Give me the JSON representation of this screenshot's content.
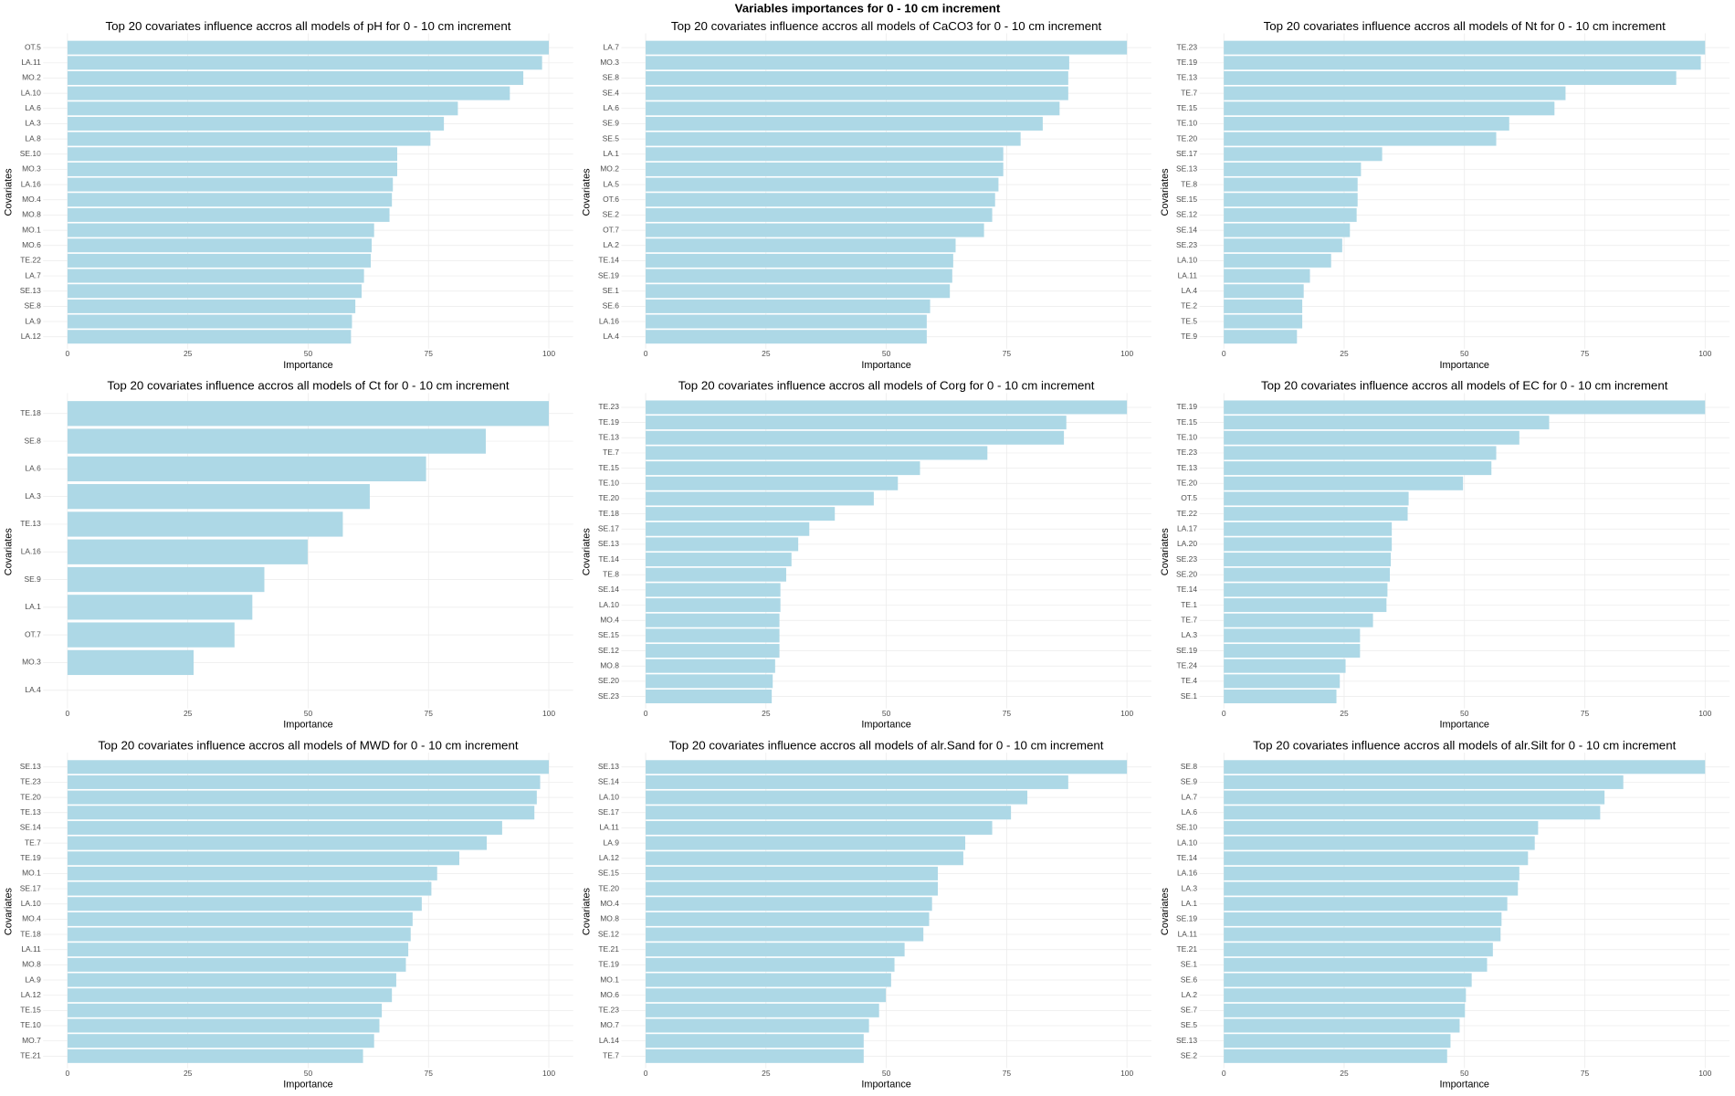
{
  "title": "Variables importances for 0 - 10 cm increment",
  "chart_data": [
    {
      "type": "bar",
      "orientation": "horizontal",
      "title": "Top 20 covariates influence accros all models of pH for 0 - 10 cm increment",
      "xlabel": "Importance",
      "ylabel": "Covariates",
      "color": "#add8e6",
      "xlim": [
        0,
        100
      ],
      "xticks": [
        0,
        25,
        50,
        75,
        100
      ],
      "grid": true,
      "categories": [
        "OT.5",
        "LA.11",
        "MO.2",
        "LA.10",
        "LA.6",
        "LA.3",
        "LA.8",
        "SE.10",
        "MO.3",
        "LA.16",
        "MO.4",
        "MO.8",
        "MO.1",
        "MO.6",
        "TE.22",
        "LA.7",
        "SE.13",
        "SE.8",
        "LA.9",
        "LA.12"
      ],
      "values": [
        100,
        98.6,
        94.7,
        91.9,
        81.1,
        78.2,
        75.4,
        68.5,
        68.5,
        67.6,
        67.4,
        66.9,
        63.7,
        63.2,
        63.0,
        61.6,
        61.1,
        59.8,
        59.1,
        58.9
      ]
    },
    {
      "type": "bar",
      "orientation": "horizontal",
      "title": "Top 20 covariates influence accros all models of CaCO3 for 0 - 10 cm increment",
      "xlabel": "Importance",
      "ylabel": "Covariates",
      "color": "#add8e6",
      "xlim": [
        0,
        100
      ],
      "xticks": [
        0,
        25,
        50,
        75,
        100
      ],
      "grid": true,
      "categories": [
        "LA.7",
        "MO.3",
        "SE.8",
        "SE.4",
        "LA.6",
        "SE.9",
        "SE.5",
        "LA.1",
        "MO.2",
        "LA.5",
        "OT.6",
        "SE.2",
        "OT.7",
        "LA.2",
        "TE.14",
        "SE.19",
        "SE.1",
        "SE.6",
        "LA.16",
        "LA.4"
      ],
      "values": [
        100,
        88.0,
        87.8,
        87.8,
        86.0,
        82.5,
        77.9,
        74.3,
        74.3,
        73.3,
        72.6,
        72.0,
        70.3,
        64.4,
        63.9,
        63.7,
        63.2,
        59.1,
        58.4,
        58.4
      ]
    },
    {
      "type": "bar",
      "orientation": "horizontal",
      "title": "Top 20 covariates influence accros all models of Nt for 0 - 10 cm increment",
      "xlabel": "Importance",
      "ylabel": "Covariates",
      "color": "#add8e6",
      "xlim": [
        0,
        100
      ],
      "xticks": [
        0,
        25,
        50,
        75,
        100
      ],
      "grid": true,
      "categories": [
        "TE.23",
        "TE.19",
        "TE.13",
        "TE.7",
        "TE.15",
        "TE.10",
        "TE.20",
        "SE.17",
        "SE.13",
        "TE.8",
        "SE.15",
        "SE.12",
        "SE.14",
        "SE.23",
        "LA.10",
        "LA.11",
        "LA.4",
        "TE.2",
        "TE.5",
        "TE.9"
      ],
      "values": [
        100,
        99.1,
        94.0,
        71.0,
        68.7,
        59.3,
        56.6,
        32.9,
        28.5,
        27.8,
        27.8,
        27.6,
        26.2,
        24.6,
        22.3,
        17.9,
        16.6,
        16.3,
        16.3,
        15.2
      ]
    },
    {
      "type": "bar",
      "orientation": "horizontal",
      "title": "Top 20 covariates influence accros all models of Ct for 0 - 10 cm increment",
      "xlabel": "Importance",
      "ylabel": "Covariates",
      "color": "#add8e6",
      "xlim": [
        0,
        100
      ],
      "xticks": [
        0,
        25,
        50,
        75,
        100
      ],
      "grid": true,
      "categories": [
        "TE.18",
        "SE.8",
        "LA.6",
        "LA.3",
        "TE.13",
        "LA.16",
        "SE.9",
        "LA.1",
        "OT.7",
        "MO.3",
        "LA.4"
      ],
      "values": [
        100,
        86.9,
        74.5,
        62.8,
        57.2,
        49.9,
        40.9,
        38.4,
        34.7,
        26.2,
        0
      ]
    },
    {
      "type": "bar",
      "orientation": "horizontal",
      "title": "Top 20 covariates influence accros all models of Corg for 0 - 10 cm increment",
      "xlabel": "Importance",
      "ylabel": "Covariates",
      "color": "#add8e6",
      "xlim": [
        0,
        100
      ],
      "xticks": [
        0,
        25,
        50,
        75,
        100
      ],
      "grid": true,
      "categories": [
        "TE.23",
        "TE.19",
        "TE.13",
        "TE.7",
        "TE.15",
        "TE.10",
        "TE.20",
        "TE.18",
        "SE.17",
        "SE.13",
        "TE.14",
        "TE.8",
        "SE.14",
        "LA.10",
        "MO.4",
        "SE.15",
        "SE.12",
        "MO.8",
        "SE.20",
        "SE.23"
      ],
      "values": [
        100,
        87.4,
        86.9,
        71.0,
        57.0,
        52.4,
        47.4,
        39.3,
        34.0,
        31.7,
        30.3,
        29.2,
        28.0,
        28.0,
        27.8,
        27.8,
        27.8,
        26.9,
        26.4,
        26.2
      ]
    },
    {
      "type": "bar",
      "orientation": "horizontal",
      "title": "Top 20 covariates influence accros all models of EC for 0 - 10 cm increment",
      "xlabel": "Importance",
      "ylabel": "Covariates",
      "color": "#add8e6",
      "xlim": [
        0,
        100
      ],
      "xticks": [
        0,
        25,
        50,
        75,
        100
      ],
      "grid": true,
      "categories": [
        "TE.19",
        "TE.15",
        "TE.10",
        "TE.23",
        "TE.13",
        "TE.20",
        "OT.5",
        "TE.22",
        "LA.17",
        "LA.20",
        "SE.23",
        "SE.20",
        "TE.14",
        "TE.1",
        "TE.7",
        "LA.3",
        "SE.19",
        "TE.24",
        "TE.4",
        "SE.1"
      ],
      "values": [
        100,
        67.6,
        61.4,
        56.6,
        55.6,
        49.7,
        38.4,
        38.2,
        34.9,
        34.9,
        34.7,
        34.5,
        34.0,
        33.8,
        31.0,
        28.3,
        28.3,
        25.3,
        24.1,
        23.4
      ]
    },
    {
      "type": "bar",
      "orientation": "horizontal",
      "title": "Top 20 covariates influence accros all models of MWD for 0 - 10 cm increment",
      "xlabel": "Importance",
      "ylabel": "Covariates",
      "color": "#add8e6",
      "xlim": [
        0,
        100
      ],
      "xticks": [
        0,
        25,
        50,
        75,
        100
      ],
      "grid": true,
      "categories": [
        "SE.13",
        "TE.23",
        "TE.20",
        "TE.13",
        "SE.14",
        "TE.7",
        "TE.19",
        "MO.1",
        "SE.17",
        "LA.10",
        "MO.4",
        "TE.18",
        "LA.11",
        "MO.8",
        "LA.9",
        "LA.12",
        "TE.15",
        "TE.10",
        "MO.7",
        "TE.21"
      ],
      "values": [
        100,
        98.2,
        97.5,
        97.0,
        90.3,
        87.1,
        81.4,
        76.8,
        75.6,
        73.6,
        71.7,
        71.3,
        70.8,
        70.3,
        68.3,
        67.4,
        65.3,
        64.8,
        63.7,
        61.4
      ]
    },
    {
      "type": "bar",
      "orientation": "horizontal",
      "title": "Top 20 covariates influence accros all models of alr.Sand for 0 - 10 cm increment",
      "xlabel": "Importance",
      "ylabel": "Covariates",
      "color": "#add8e6",
      "xlim": [
        0,
        100
      ],
      "xticks": [
        0,
        25,
        50,
        75,
        100
      ],
      "grid": true,
      "categories": [
        "SE.13",
        "SE.14",
        "LA.10",
        "SE.17",
        "LA.11",
        "LA.9",
        "LA.12",
        "SE.15",
        "TE.20",
        "MO.4",
        "MO.8",
        "SE.12",
        "TE.21",
        "TE.19",
        "MO.1",
        "MO.6",
        "TE.23",
        "MO.7",
        "LA.14",
        "TE.7"
      ],
      "values": [
        100,
        87.8,
        79.3,
        75.9,
        72.0,
        66.4,
        66.0,
        60.7,
        60.7,
        59.5,
        58.9,
        57.7,
        53.8,
        51.7,
        51.0,
        49.9,
        48.5,
        46.4,
        45.3,
        45.3
      ]
    },
    {
      "type": "bar",
      "orientation": "horizontal",
      "title": "Top 20 covariates influence accros all models of alr.Silt for 0 - 10 cm increment",
      "xlabel": "Importance",
      "ylabel": "Covariates",
      "color": "#add8e6",
      "xlim": [
        0,
        100
      ],
      "xticks": [
        0,
        25,
        50,
        75,
        100
      ],
      "grid": true,
      "categories": [
        "SE.8",
        "SE.9",
        "LA.7",
        "LA.6",
        "SE.10",
        "LA.10",
        "TE.14",
        "LA.16",
        "LA.3",
        "LA.1",
        "SE.19",
        "LA.11",
        "TE.21",
        "SE.1",
        "SE.6",
        "LA.2",
        "SE.7",
        "SE.5",
        "SE.13",
        "SE.2"
      ],
      "values": [
        100,
        83.0,
        79.1,
        78.2,
        65.3,
        64.6,
        63.2,
        61.4,
        61.1,
        58.9,
        57.7,
        57.5,
        55.9,
        54.7,
        51.5,
        50.3,
        50.1,
        49.0,
        47.1,
        46.4
      ]
    }
  ]
}
